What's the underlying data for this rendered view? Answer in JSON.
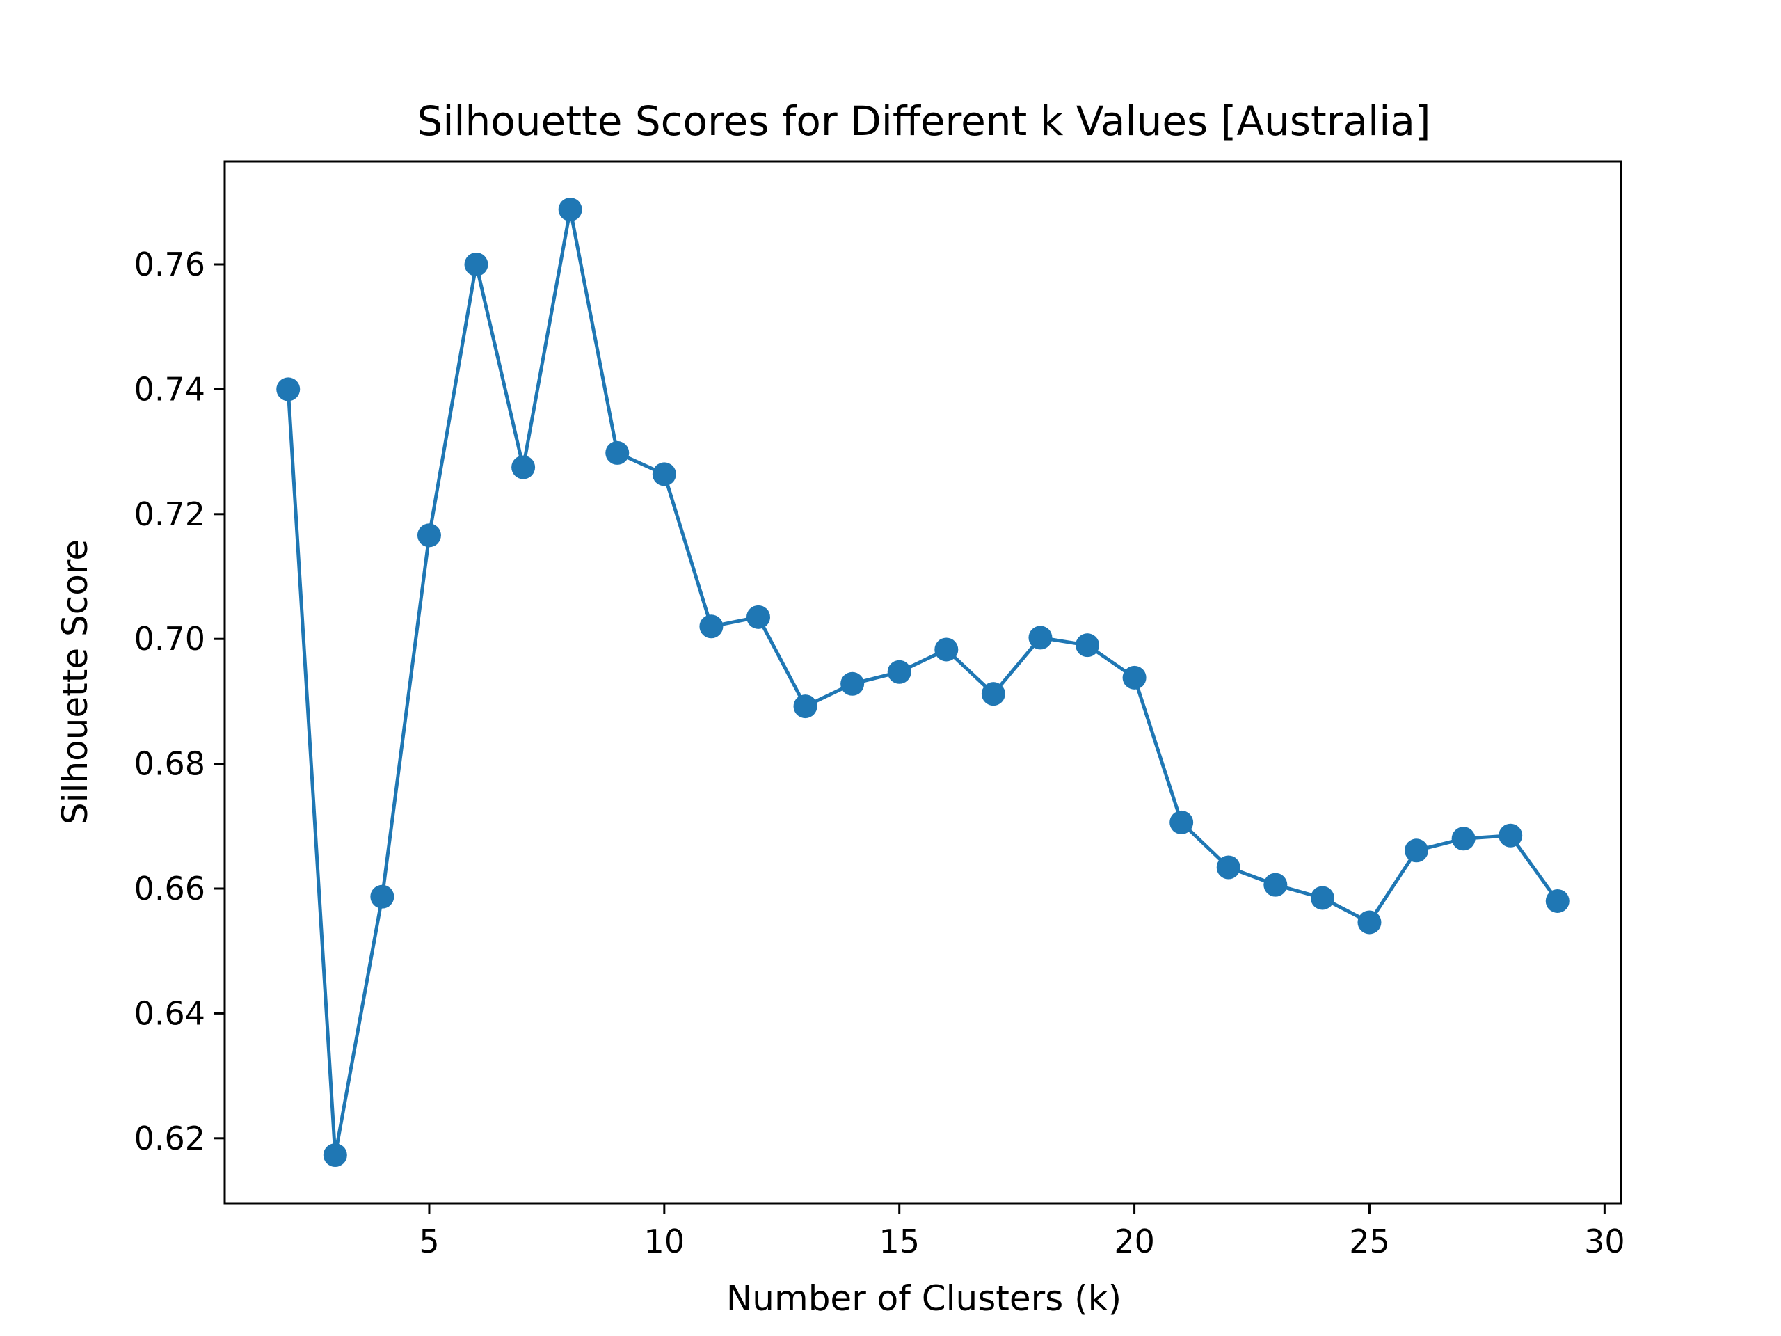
{
  "chart_data": {
    "type": "line",
    "title": "Silhouette Scores for Different k Values [Australia]",
    "xlabel": "Number of Clusters (k)",
    "ylabel": "Silhouette Score",
    "xlim": [
      0.65,
      30.35
    ],
    "ylim": [
      0.6095,
      0.7765
    ],
    "xticks": [
      5,
      10,
      15,
      20,
      25,
      30
    ],
    "yticks": [
      0.62,
      0.64,
      0.66,
      0.68,
      0.7,
      0.72,
      0.74,
      0.76
    ],
    "ytick_labels": [
      "0.62",
      "0.64",
      "0.66",
      "0.68",
      "0.70",
      "0.72",
      "0.74",
      "0.76"
    ],
    "grid": false,
    "marker": "circle",
    "series": [
      {
        "color": "#1f77b4",
        "x": [
          2,
          3,
          4,
          5,
          6,
          7,
          8,
          9,
          10,
          11,
          12,
          13,
          14,
          15,
          16,
          17,
          18,
          19,
          20,
          21,
          22,
          23,
          24,
          25,
          26,
          27,
          28,
          29
        ],
        "y": [
          0.74,
          0.6173,
          0.6587,
          0.7166,
          0.76,
          0.7275,
          0.7688,
          0.7298,
          0.7264,
          0.702,
          0.7035,
          0.6892,
          0.6928,
          0.6947,
          0.6983,
          0.6912,
          0.7002,
          0.699,
          0.6938,
          0.6706,
          0.6634,
          0.6606,
          0.6585,
          0.6546,
          0.6661,
          0.668,
          0.6685,
          0.658
        ]
      }
    ]
  }
}
